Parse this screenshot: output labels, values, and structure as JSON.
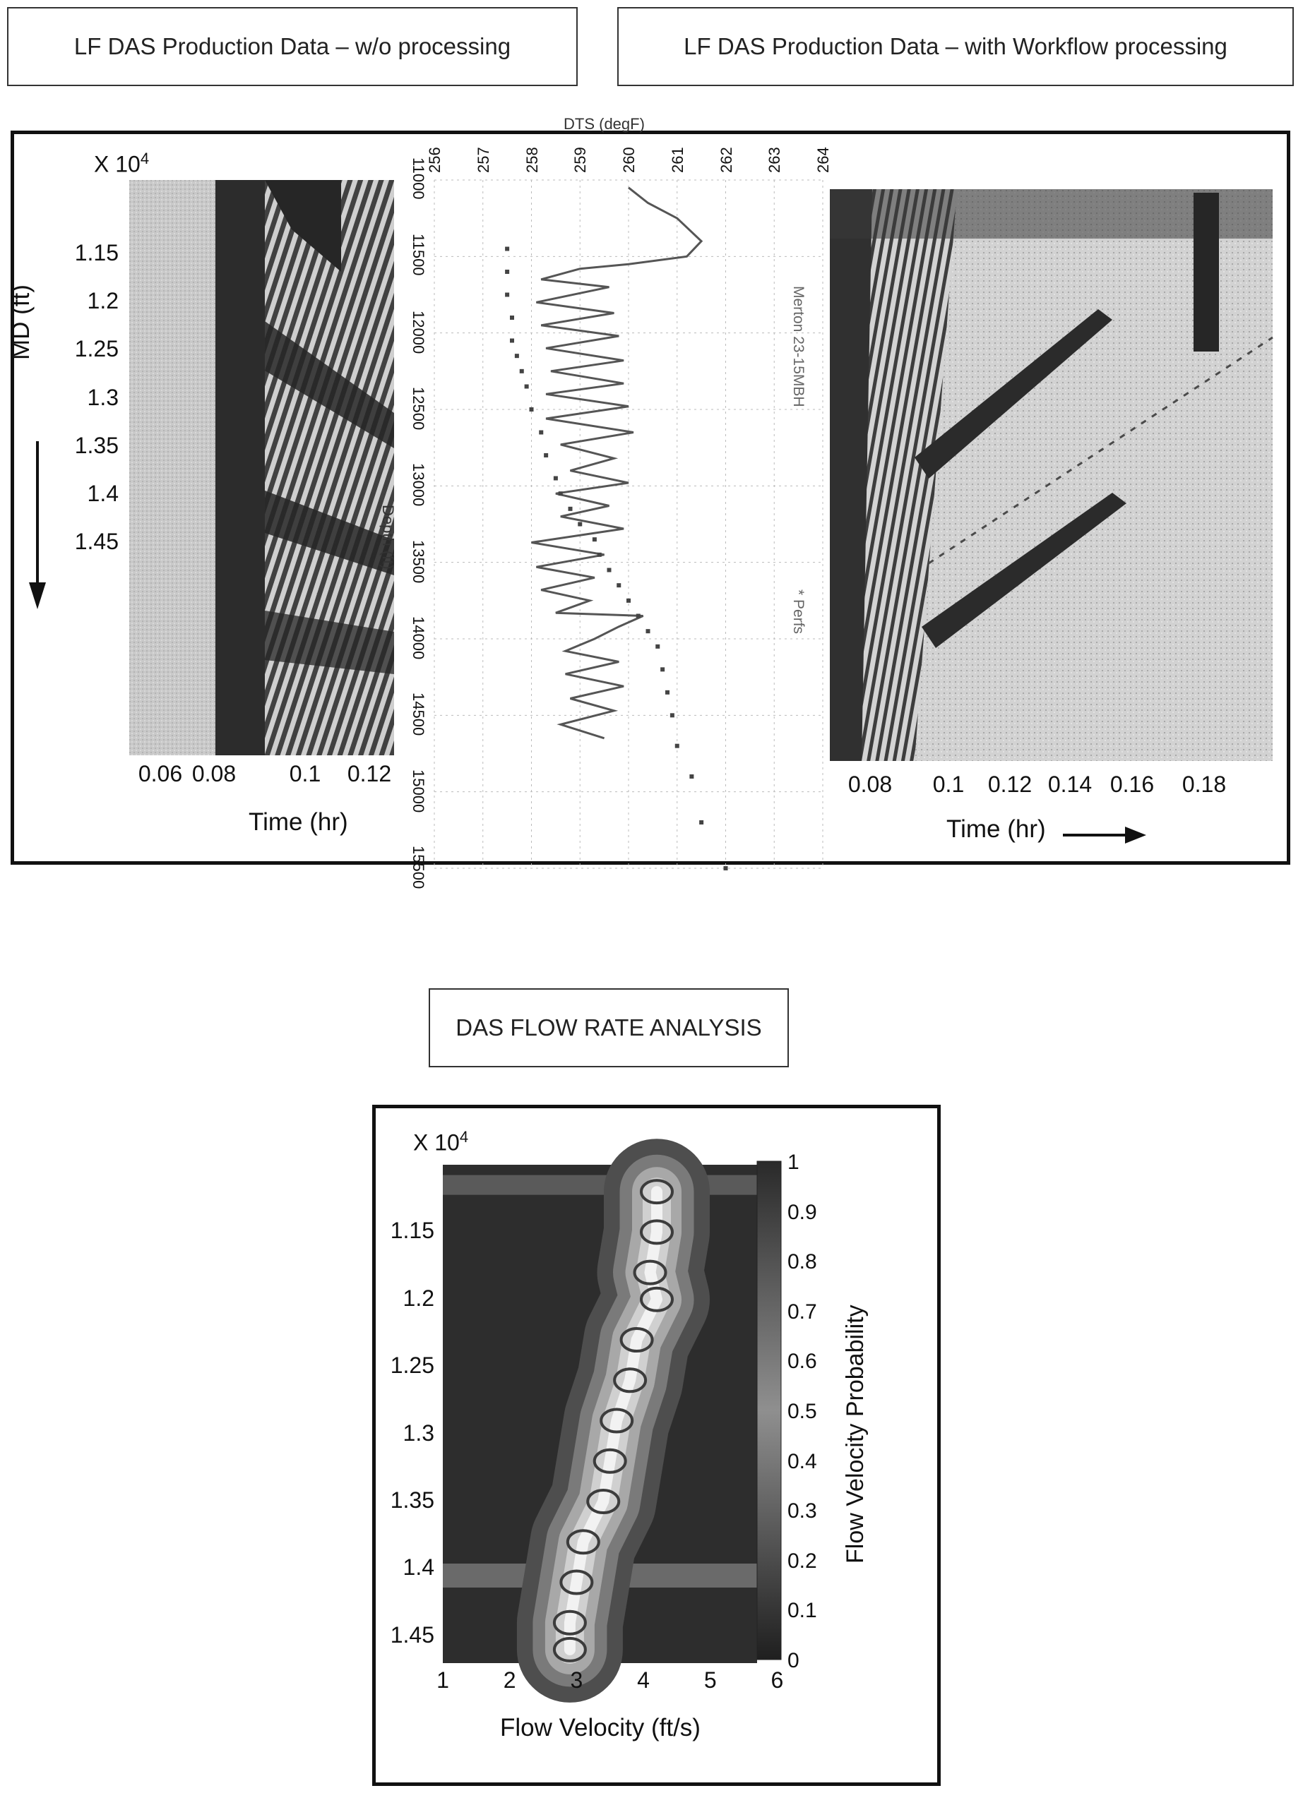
{
  "headers": {
    "left": "LF DAS Production Data – w/o processing",
    "right": "LF DAS Production Data – with Workflow processing",
    "bottom": "DAS FLOW RATE ANALYSIS"
  },
  "colors": {
    "frame": "#111111",
    "text": "#111111",
    "heat_dark": "#2b2b2b",
    "heat_light": "#d8d8d8"
  },
  "chart_data": [
    {
      "type": "heatmap",
      "panel": "raw",
      "title": "LF DAS Production Data – w/o processing",
      "ylabel": "MD (ft)",
      "y_multiplier": "X 10",
      "y_multiplier_exp": "4",
      "y_ticks": [
        "1.15",
        "1.2",
        "1.25",
        "1.3",
        "1.35",
        "1.4",
        "1.45"
      ],
      "xlabel": "Time (hr)",
      "x_ticks": [
        "0.06",
        "0.08",
        "0.1",
        "0.12"
      ],
      "xlim": [
        0.045,
        0.125
      ],
      "ylim": [
        1.1,
        1.47
      ],
      "grid": false,
      "legend": "none"
    },
    {
      "type": "line",
      "panel": "dts",
      "title": "",
      "xlabel": "DTS (degF)",
      "ylabel": "Depth (ft)",
      "x_ticks": [
        "256",
        "257",
        "258",
        "259",
        "260",
        "261",
        "262",
        "263",
        "264"
      ],
      "y_ticks": [
        "11000",
        "11500",
        "12000",
        "12500",
        "13000",
        "13500",
        "14000",
        "14500",
        "15000",
        "15500"
      ],
      "xlim": [
        256,
        264
      ],
      "ylim": [
        11000,
        15500
      ],
      "grid": true,
      "legend_position": "right",
      "series": [
        {
          "name": "Merton 23-15MBH",
          "x": [
            260.0,
            260.4,
            261.0,
            261.5,
            261.2,
            260.0,
            259.0,
            258.2,
            259.6,
            258.1,
            259.7,
            258.2,
            259.8,
            258.3,
            259.9,
            258.4,
            259.9,
            258.3,
            260.0,
            258.3,
            260.1,
            258.6,
            259.7,
            258.8,
            260.0,
            258.5,
            259.6,
            258.6,
            259.9,
            258.0,
            259.5,
            258.1,
            259.3,
            258.2,
            259.2,
            258.5,
            260.3,
            259.8,
            259.3,
            258.7,
            259.8,
            258.7,
            259.9,
            258.8,
            259.7,
            258.6,
            259.5
          ],
          "y": [
            11050,
            11150,
            11250,
            11400,
            11500,
            11550,
            11580,
            11650,
            11700,
            11800,
            11870,
            11950,
            12020,
            12100,
            12180,
            12250,
            12330,
            12400,
            12480,
            12560,
            12650,
            12730,
            12820,
            12900,
            12980,
            13050,
            13130,
            13200,
            13280,
            13370,
            13450,
            13530,
            13600,
            13680,
            13750,
            13830,
            13850,
            13920,
            14000,
            14080,
            14150,
            14230,
            14310,
            14390,
            14470,
            14560,
            14650
          ]
        },
        {
          "name": "Perfs",
          "x": [
            257.5,
            257.5,
            257.5,
            257.6,
            257.6,
            257.7,
            257.8,
            257.9,
            258.0,
            258.2,
            258.3,
            258.5,
            258.6,
            258.8,
            259.0,
            259.3,
            259.4,
            259.6,
            259.8,
            260.0,
            260.2,
            260.4,
            260.6,
            260.7,
            260.8,
            260.9,
            261.0,
            261.3,
            261.5,
            262.0
          ],
          "y": [
            11450,
            11600,
            11750,
            11900,
            12050,
            12150,
            12250,
            12350,
            12500,
            12650,
            12800,
            12950,
            13050,
            13150,
            13250,
            13350,
            13450,
            13550,
            13650,
            13750,
            13850,
            13950,
            14050,
            14200,
            14350,
            14500,
            14700,
            14900,
            15200,
            15500
          ]
        }
      ]
    },
    {
      "type": "heatmap",
      "panel": "processed",
      "title": "LF DAS Production Data – with Workflow processing",
      "xlabel": "Time (hr)",
      "x_ticks": [
        "0.08",
        "0.1",
        "0.12",
        "0.14",
        "0.16",
        "0.18"
      ],
      "xlim": [
        0.07,
        0.2
      ],
      "grid": false,
      "legend": "none"
    },
    {
      "type": "heatmap",
      "panel": "flow-velocity",
      "title": "DAS FLOW RATE ANALYSIS",
      "xlabel": "Flow Velocity (ft/s)",
      "ylabel": "",
      "y_multiplier": "X 10",
      "y_multiplier_exp": "4",
      "x_ticks": [
        "1",
        "2",
        "3",
        "4",
        "5",
        "6"
      ],
      "y_ticks": [
        "1.15",
        "1.2",
        "1.25",
        "1.3",
        "1.35",
        "1.4",
        "1.45"
      ],
      "xlim": [
        1,
        5.7
      ],
      "ylim": [
        1.1,
        1.47
      ],
      "colorbar_label": "Flow Velocity Probability",
      "colorbar_ticks": [
        "1",
        "0.9",
        "0.8",
        "0.7",
        "0.6",
        "0.5",
        "0.4",
        "0.3",
        "0.2",
        "0.1",
        "0"
      ],
      "colorbar_range": [
        0,
        1
      ],
      "ridge": {
        "depth": [
          1.12,
          1.15,
          1.18,
          1.2,
          1.23,
          1.26,
          1.29,
          1.32,
          1.35,
          1.38,
          1.41,
          1.44,
          1.46
        ],
        "velocity": [
          4.2,
          4.2,
          4.1,
          4.2,
          3.9,
          3.8,
          3.6,
          3.5,
          3.4,
          3.1,
          3.0,
          2.9,
          2.9
        ]
      },
      "grid": false
    }
  ]
}
